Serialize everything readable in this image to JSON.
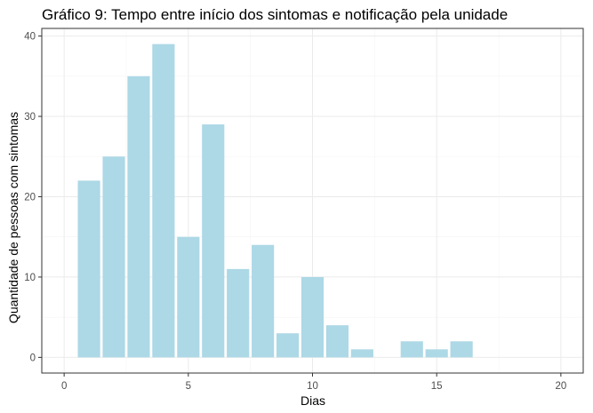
{
  "chart_data": {
    "type": "bar",
    "title": "Gráfico 9: Tempo entre início dos sintomas e notificação pela unidade",
    "xlabel": "Dias",
    "ylabel": "Quantidade de pessoas com sintomas",
    "x": [
      1,
      2,
      3,
      4,
      5,
      6,
      7,
      8,
      9,
      10,
      11,
      12,
      14,
      15,
      16
    ],
    "values": [
      22,
      25,
      35,
      39,
      15,
      29,
      11,
      14,
      3,
      10,
      4,
      1,
      2,
      1,
      2
    ],
    "xlim": [
      -0.9,
      20.9
    ],
    "ylim": [
      -1.95,
      40.95
    ],
    "xticks": [
      0,
      5,
      10,
      15,
      20
    ],
    "yticks": [
      0,
      10,
      20,
      30,
      40
    ],
    "xminor": [
      2.5,
      7.5,
      12.5,
      17.5
    ],
    "yminor": [
      5,
      15,
      25,
      35
    ],
    "grid": true,
    "legend": "none",
    "colors": {
      "bar": "#add8e6",
      "grid_major": "#ebebeb",
      "grid_minor": "#f4f4f4",
      "frame": "#333333",
      "tick_text": "#4d4d4d"
    }
  }
}
